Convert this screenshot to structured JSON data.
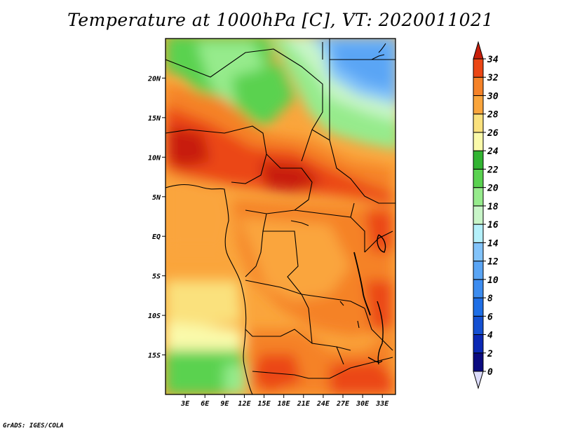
{
  "title": "Temperature at 1000hPa [C], VT: 2020011021",
  "credit": "GrADS: IGES/COLA",
  "map": {
    "lat_labels": [
      "20N",
      "15N",
      "10N",
      "5N",
      "EQ",
      "5S",
      "10S",
      "15S"
    ],
    "lat_values": [
      20,
      15,
      10,
      5,
      0,
      -5,
      -10,
      -15
    ],
    "lon_labels": [
      "3E",
      "6E",
      "9E",
      "12E",
      "15E",
      "18E",
      "21E",
      "24E",
      "27E",
      "30E",
      "33E"
    ],
    "lon_values": [
      3,
      6,
      9,
      12,
      15,
      18,
      21,
      24,
      27,
      30,
      33
    ],
    "lon_range": [
      0,
      35
    ],
    "lat_range": [
      -20,
      25
    ]
  },
  "colorbar": {
    "labels": [
      "0",
      "2",
      "4",
      "6",
      "8",
      "10",
      "12",
      "14",
      "16",
      "18",
      "20",
      "22",
      "24",
      "26",
      "28",
      "30",
      "32",
      "34"
    ],
    "colors": [
      "#0a0a80",
      "#0a28b4",
      "#1450d2",
      "#1e6ee6",
      "#3c8cf0",
      "#5aa5f5",
      "#82c3fa",
      "#b4f0fa",
      "#c8f5c8",
      "#96eb8c",
      "#5ad250",
      "#32b432",
      "#fafaaa",
      "#fae17d",
      "#faa53c",
      "#f58228",
      "#eb4614",
      "#c81e0a"
    ]
  }
}
